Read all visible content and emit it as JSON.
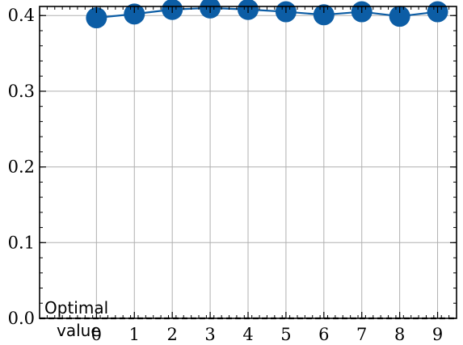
{
  "chart_data": {
    "type": "line",
    "x": [
      0,
      1,
      2,
      3,
      4,
      5,
      6,
      7,
      8,
      9
    ],
    "series": [
      {
        "values": [
          0.397,
          0.402,
          0.408,
          0.41,
          0.408,
          0.405,
          0.401,
          0.405,
          0.399,
          0.405
        ],
        "color": "#0c5da5"
      }
    ],
    "reference_line": {
      "y": 0.0,
      "style": "dashed",
      "color": "#000000",
      "label": "Optimal value"
    },
    "xticks": [
      "0",
      "1",
      "2",
      "3",
      "4",
      "5",
      "6",
      "7",
      "8",
      "9"
    ],
    "yticks": [
      "0.0",
      "0.1",
      "0.2",
      "0.3",
      "0.4"
    ],
    "xlim": [
      -1.5,
      9.5
    ],
    "ylim": [
      0.0,
      0.412
    ],
    "grid": true,
    "annotation": {
      "line1": "Optimal",
      "line2": "value"
    }
  }
}
